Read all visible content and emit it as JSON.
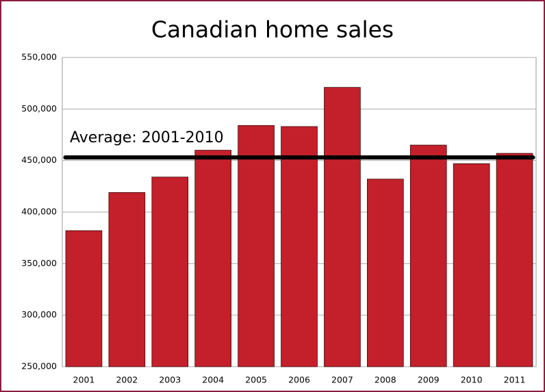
{
  "chart_data": {
    "type": "bar",
    "title": "Canadian home sales",
    "categories": [
      "2001",
      "2002",
      "2003",
      "2004",
      "2005",
      "2006",
      "2007",
      "2008",
      "2009",
      "2010",
      "2011"
    ],
    "values": [
      382000,
      419000,
      434000,
      460000,
      484000,
      483000,
      521000,
      432000,
      465000,
      447000,
      457000
    ],
    "color": "#c3202b",
    "ylim": [
      250000,
      550000
    ],
    "yticks": [
      {
        "value": 250000,
        "label": "250,000"
      },
      {
        "value": 300000,
        "label": "300,000"
      },
      {
        "value": 350000,
        "label": "350,000"
      },
      {
        "value": 400000,
        "label": "400,000"
      },
      {
        "value": 450000,
        "label": "450,000"
      },
      {
        "value": 500000,
        "label": "500,000"
      },
      {
        "value": 550000,
        "label": "550,000"
      }
    ],
    "grid": true,
    "average": {
      "label": "Average: 2001-2010",
      "value": 453000
    }
  }
}
